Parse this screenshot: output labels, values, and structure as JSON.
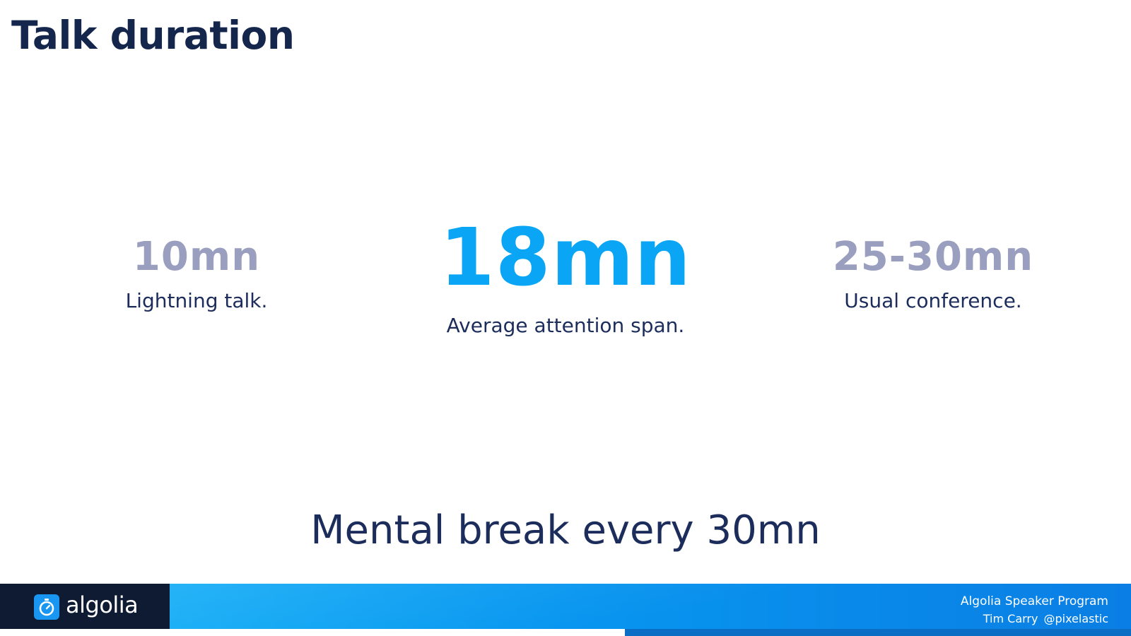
{
  "slide": {
    "title": "Talk duration"
  },
  "stats": {
    "left": {
      "value": "10mn",
      "caption": "Lightning talk."
    },
    "center": {
      "value": "18mn",
      "caption": "Average attention span."
    },
    "right": {
      "value": "25-30mn",
      "caption": "Usual conference."
    }
  },
  "footline": "Mental break every 30mn",
  "footer": {
    "brand": "algolia",
    "brand_icon": "stopwatch-icon",
    "program": "Algolia Speaker Program",
    "author_name": "Tim Carry",
    "author_handle": "@pixelastic"
  },
  "colors": {
    "title": "#15264d",
    "text": "#1c2d5c",
    "muted_value": "#9a9fbf",
    "accent": "#0aa5f5",
    "footer_dark": "#0e1b33",
    "footer_blue": "#0896f0"
  }
}
